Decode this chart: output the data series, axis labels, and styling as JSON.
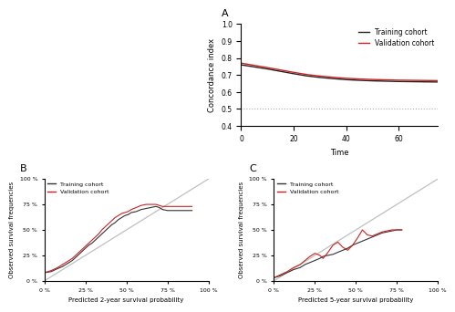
{
  "panel_A": {
    "label": "A",
    "training_x": [
      0,
      5,
      10,
      15,
      20,
      25,
      30,
      35,
      40,
      45,
      50,
      55,
      60,
      65,
      70,
      75
    ],
    "training_y": [
      0.76,
      0.748,
      0.736,
      0.722,
      0.708,
      0.695,
      0.686,
      0.679,
      0.673,
      0.669,
      0.666,
      0.664,
      0.662,
      0.661,
      0.66,
      0.659
    ],
    "validation_x": [
      0,
      5,
      10,
      15,
      20,
      25,
      30,
      35,
      40,
      45,
      50,
      55,
      60,
      65,
      70,
      75
    ],
    "validation_y": [
      0.77,
      0.757,
      0.744,
      0.73,
      0.716,
      0.703,
      0.694,
      0.687,
      0.681,
      0.677,
      0.674,
      0.672,
      0.67,
      0.669,
      0.668,
      0.667
    ],
    "training_color": "#222222",
    "validation_color": "#cc2222",
    "xlabel": "Time",
    "ylabel": "Concordance index",
    "xlim": [
      0,
      75
    ],
    "ylim": [
      0.4,
      1.0
    ],
    "yticks": [
      0.4,
      0.5,
      0.6,
      0.7,
      0.8,
      0.9,
      1.0
    ],
    "xticks": [
      0,
      20,
      40,
      60
    ],
    "hline_y": 0.5,
    "hline_color": "#aaaaaa"
  },
  "panel_B": {
    "label": "B",
    "training_x": [
      0.0,
      0.04,
      0.08,
      0.11,
      0.14,
      0.17,
      0.19,
      0.21,
      0.23,
      0.25,
      0.27,
      0.29,
      0.31,
      0.33,
      0.35,
      0.37,
      0.39,
      0.41,
      0.43,
      0.45,
      0.47,
      0.49,
      0.51,
      0.53,
      0.56,
      0.59,
      0.62,
      0.65,
      0.68,
      0.7,
      0.72,
      0.75,
      0.78,
      0.8,
      0.83,
      0.86,
      0.89,
      0.9
    ],
    "training_y": [
      0.08,
      0.09,
      0.12,
      0.14,
      0.17,
      0.2,
      0.23,
      0.26,
      0.29,
      0.32,
      0.35,
      0.37,
      0.4,
      0.43,
      0.46,
      0.49,
      0.52,
      0.55,
      0.57,
      0.6,
      0.62,
      0.64,
      0.65,
      0.67,
      0.68,
      0.7,
      0.71,
      0.72,
      0.73,
      0.72,
      0.7,
      0.69,
      0.69,
      0.69,
      0.69,
      0.69,
      0.69,
      0.69
    ],
    "validation_x": [
      0.0,
      0.04,
      0.08,
      0.11,
      0.14,
      0.17,
      0.19,
      0.21,
      0.23,
      0.25,
      0.27,
      0.29,
      0.31,
      0.33,
      0.35,
      0.37,
      0.39,
      0.41,
      0.43,
      0.45,
      0.47,
      0.49,
      0.51,
      0.53,
      0.56,
      0.59,
      0.62,
      0.65,
      0.68,
      0.7,
      0.72,
      0.75,
      0.78,
      0.8,
      0.83,
      0.86,
      0.89,
      0.9
    ],
    "validation_y": [
      0.08,
      0.1,
      0.13,
      0.16,
      0.19,
      0.22,
      0.25,
      0.28,
      0.31,
      0.34,
      0.37,
      0.4,
      0.43,
      0.46,
      0.5,
      0.53,
      0.56,
      0.59,
      0.62,
      0.64,
      0.66,
      0.67,
      0.68,
      0.7,
      0.72,
      0.74,
      0.75,
      0.75,
      0.75,
      0.74,
      0.73,
      0.73,
      0.73,
      0.73,
      0.73,
      0.73,
      0.73,
      0.73
    ],
    "training_color": "#333333",
    "validation_color": "#cc2222",
    "xlabel": "Predicted 2-year survival probability",
    "ylabel": "Observed survival frequencies",
    "xlim": [
      0.0,
      1.0
    ],
    "ylim": [
      0.0,
      1.0
    ],
    "xticks": [
      0.0,
      0.25,
      0.5,
      0.75,
      1.0
    ],
    "xticklabels": [
      "0 %",
      "25 %",
      "50 %",
      "75 %",
      "100 %"
    ],
    "yticks": [
      0.0,
      0.25,
      0.5,
      0.75,
      1.0
    ],
    "yticklabels": [
      "0 %",
      "25 %",
      "50 %",
      "75 %",
      "100 %"
    ]
  },
  "panel_C": {
    "label": "C",
    "training_x": [
      0.0,
      0.04,
      0.08,
      0.12,
      0.16,
      0.19,
      0.22,
      0.25,
      0.28,
      0.3,
      0.33,
      0.36,
      0.39,
      0.42,
      0.45,
      0.48,
      0.51,
      0.54,
      0.57,
      0.6,
      0.63,
      0.66,
      0.69,
      0.72,
      0.75,
      0.78
    ],
    "training_y": [
      0.03,
      0.05,
      0.08,
      0.11,
      0.13,
      0.16,
      0.18,
      0.2,
      0.22,
      0.24,
      0.25,
      0.26,
      0.28,
      0.3,
      0.32,
      0.35,
      0.37,
      0.39,
      0.41,
      0.43,
      0.45,
      0.47,
      0.48,
      0.49,
      0.5,
      0.5
    ],
    "validation_x": [
      0.0,
      0.04,
      0.08,
      0.12,
      0.16,
      0.19,
      0.22,
      0.25,
      0.28,
      0.3,
      0.33,
      0.36,
      0.39,
      0.42,
      0.45,
      0.48,
      0.51,
      0.54,
      0.57,
      0.6,
      0.63,
      0.66,
      0.69,
      0.72,
      0.75,
      0.78
    ],
    "validation_y": [
      0.03,
      0.06,
      0.09,
      0.13,
      0.16,
      0.2,
      0.24,
      0.27,
      0.25,
      0.22,
      0.28,
      0.35,
      0.38,
      0.33,
      0.3,
      0.35,
      0.42,
      0.5,
      0.45,
      0.44,
      0.46,
      0.48,
      0.49,
      0.5,
      0.5,
      0.5
    ],
    "training_color": "#333333",
    "validation_color": "#cc2222",
    "xlabel": "Predicted 5-year survival probability",
    "ylabel": "Observed survival frequencies",
    "xlim": [
      0.0,
      1.0
    ],
    "ylim": [
      0.0,
      1.0
    ],
    "xticks": [
      0.0,
      0.25,
      0.5,
      0.75,
      1.0
    ],
    "xticklabels": [
      "0 %",
      "25 %",
      "50 %",
      "75 %",
      "100 %"
    ],
    "yticks": [
      0.0,
      0.25,
      0.5,
      0.75,
      1.0
    ],
    "yticklabels": [
      "0 %",
      "25 %",
      "50 %",
      "75 %",
      "100 %"
    ]
  },
  "legend_training": "Training cohort",
  "legend_validation": "Validation cohort",
  "bg_color": "#ffffff",
  "axes_bg": "#ffffff"
}
